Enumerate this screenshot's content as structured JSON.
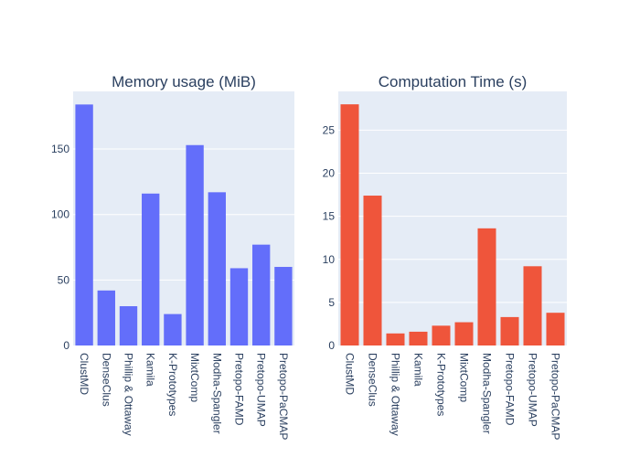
{
  "chart_data": [
    {
      "type": "bar",
      "title": "Memory usage (MiB)",
      "categories": [
        "ClustMD",
        "DenseClus",
        "Phillip & Ottaway",
        "Kamila",
        "K-Prototypes",
        "MixtComp",
        "Modha-Spangler",
        "Pretopo-FAMD",
        "Pretopo-UMAP",
        "Pretopo-PaCMAP"
      ],
      "values": [
        184,
        42,
        30,
        116,
        24,
        153,
        117,
        59,
        77,
        60
      ],
      "ylim": [
        0,
        194
      ],
      "yticks": [
        0,
        50,
        100,
        150
      ],
      "color": "#636efa",
      "grid": true
    },
    {
      "type": "bar",
      "title": "Computation Time (s)",
      "categories": [
        "ClustMD",
        "DenseClus",
        "Phillip & Ottaway",
        "Kamila",
        "K-Prototypes",
        "MixtComp",
        "Modha-Spangler",
        "Pretopo-FAMD",
        "Pretopo-UMAP",
        "Pretopo-PaCMAP"
      ],
      "values": [
        28,
        17.4,
        1.4,
        1.6,
        2.3,
        2.7,
        13.6,
        3.3,
        9.2,
        3.8
      ],
      "ylim": [
        0,
        29.5
      ],
      "yticks": [
        0,
        5,
        10,
        15,
        20,
        25
      ],
      "color": "#ef553b",
      "grid": true
    }
  ],
  "layout": {
    "background": "#ffffff",
    "plot_background": "#e5ecf6",
    "gridline_color": "#ffffff",
    "text_color": "#2a3f5f"
  }
}
